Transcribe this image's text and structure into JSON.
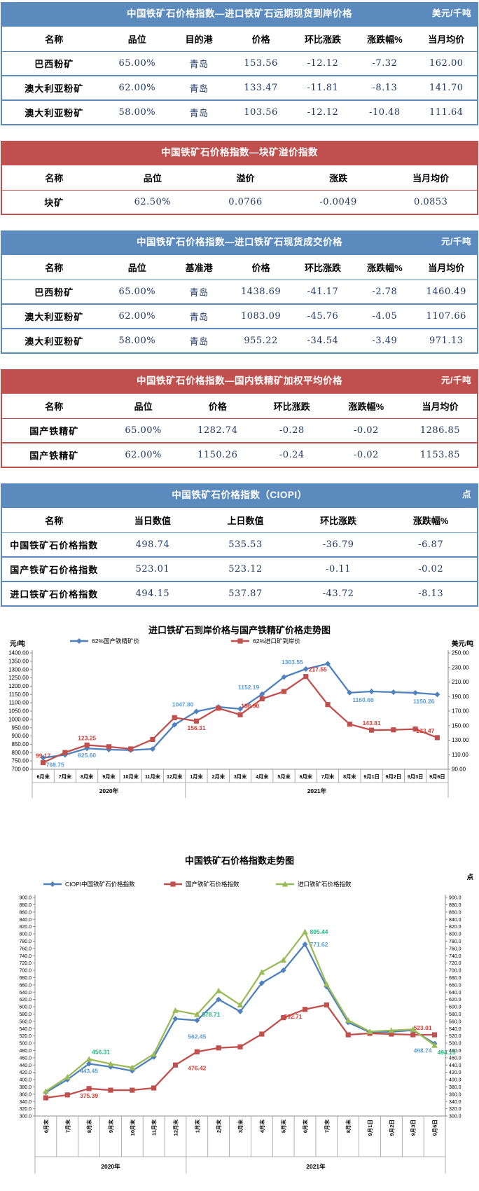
{
  "tables": [
    {
      "id": "import-forward-price",
      "accent": "blue",
      "title": "中国铁矿石价格指数—进口铁矿石远期现货到岸价格",
      "unit": "美元/千吨",
      "columns": [
        "名称",
        "品位",
        "目的港",
        "价格",
        "环比涨跌",
        "涨跌幅%",
        "当月均价"
      ],
      "rows": [
        [
          "巴西粉矿",
          "65.00%",
          "青岛",
          "153.56",
          "-12.12",
          "-7.32",
          "162.00"
        ],
        [
          "澳大利亚粉矿",
          "62.00%",
          "青岛",
          "133.47",
          "-11.81",
          "-8.13",
          "141.70"
        ],
        [
          "澳大利亚粉矿",
          "58.00%",
          "青岛",
          "103.56",
          "-12.12",
          "-10.48",
          "111.64"
        ]
      ]
    },
    {
      "id": "lump-premium-index",
      "accent": "red",
      "title": "中国铁矿石价格指数—块矿溢价指数",
      "unit": "",
      "columns": [
        "名称",
        "品位",
        "溢价",
        "涨跌",
        "当月均价"
      ],
      "rows": [
        [
          "块矿",
          "62.50%",
          "0.0766",
          "-0.0049",
          "0.0853"
        ]
      ]
    },
    {
      "id": "import-spot-deal-price",
      "accent": "blue",
      "title": "中国铁矿石价格指数—进口铁矿石现货成交价格",
      "unit": "元/千吨",
      "columns": [
        "名称",
        "品位",
        "基准港",
        "价格",
        "环比涨跌",
        "涨跌幅%",
        "当月均价"
      ],
      "rows": [
        [
          "巴西粉矿",
          "65.00%",
          "青岛",
          "1438.69",
          "-41.17",
          "-2.78",
          "1460.49"
        ],
        [
          "澳大利亚粉矿",
          "62.00%",
          "青岛",
          "1083.09",
          "-45.76",
          "-4.05",
          "1107.66"
        ],
        [
          "澳大利亚粉矿",
          "58.00%",
          "青岛",
          "955.22",
          "-34.54",
          "-3.49",
          "971.13"
        ]
      ]
    },
    {
      "id": "domestic-concentrate-price",
      "accent": "red",
      "title": "中国铁矿石价格指数—国内铁精矿加权平均价格",
      "unit": "元/千吨",
      "columns": [
        "名称",
        "品位",
        "价格",
        "环比涨跌",
        "涨跌幅%",
        "当月均价"
      ],
      "rows": [
        [
          "国产铁精矿",
          "65.00%",
          "1282.74",
          "-0.28",
          "-0.02",
          "1286.85"
        ],
        [
          "国产铁精矿",
          "62.00%",
          "1150.26",
          "-0.24",
          "-0.02",
          "1153.85"
        ]
      ]
    },
    {
      "id": "ciopi-index",
      "accent": "blue",
      "title": "中国铁矿石价格指数（CIOPI）",
      "unit": "点",
      "columns": [
        "名称",
        "当日数值",
        "上日数值",
        "环比涨跌",
        "涨跌幅%"
      ],
      "rows": [
        [
          "中国铁矿石价格指数",
          "498.74",
          "535.53",
          "-36.79",
          "-6.87"
        ],
        [
          "国产铁矿石价格指数",
          "523.01",
          "523.12",
          "-0.11",
          "-0.02"
        ],
        [
          "进口铁矿石价格指数",
          "494.15",
          "537.87",
          "-43.72",
          "-8.13"
        ]
      ]
    }
  ],
  "chart_data": [
    {
      "type": "line",
      "title": "进口铁矿石到岸价格与国产铁精矿价格走势图",
      "unit_left": "元/吨",
      "unit_right": "美元/吨",
      "x_label_style": "horizontal",
      "categories": [
        "6月末",
        "7月末",
        "8月末",
        "9月末",
        "10月末",
        "11月末",
        "12月末",
        "1月末",
        "2月末",
        "3月末",
        "4月末",
        "5月末",
        "6月末",
        "7月末",
        "8月末",
        "9月1日",
        "9月2日",
        "9月3日",
        "9月6日"
      ],
      "year_groups": [
        {
          "label": "2020年",
          "count": 7
        },
        {
          "label": "2021年",
          "count": 12
        }
      ],
      "y_left": {
        "min": 700,
        "max": 1400,
        "step": 50,
        "decimals": 2
      },
      "y_right": {
        "min": 90,
        "max": 250,
        "step": 20,
        "decimals": 2
      },
      "legend_position": "top",
      "grid": false,
      "series": [
        {
          "name": "62%国产铁精矿价",
          "color": "#4f81bd",
          "label_color": "#5b9bd5",
          "marker": "diamond",
          "axis": "left",
          "values": [
            768.75,
            787,
            825.6,
            818,
            815,
            822,
            968,
            1047.8,
            1075,
            1063,
            1152.19,
            1255,
            1303.55,
            1335,
            1160.66,
            1168,
            1164,
            1160,
            1150.26
          ],
          "point_labels": [
            {
              "i": 0,
              "text": "768.75",
              "pos": "br"
            },
            {
              "i": 2,
              "text": "825.60",
              "pos": "b"
            },
            {
              "i": 7,
              "text": "1047.80",
              "pos": "al"
            },
            {
              "i": 10,
              "text": "1152.19",
              "pos": "al"
            },
            {
              "i": 12,
              "text": "1303.55",
              "pos": "al"
            },
            {
              "i": 14,
              "text": "1160.66",
              "pos": "br"
            },
            {
              "i": 18,
              "text": "1150.26",
              "pos": "bl"
            }
          ]
        },
        {
          "name": "62%进口矿到岸价",
          "color": "#c0504d",
          "label_color": "#d93a32",
          "marker": "square",
          "axis": "right",
          "values": [
            99.17,
            113,
            123.25,
            121,
            118,
            131,
            161,
            156.31,
            174,
            165,
            186.9,
            197,
            217.55,
            179,
            152,
            143.81,
            144.2,
            145.3,
            133.47
          ],
          "point_labels": [
            {
              "i": 0,
              "text": "99.17",
              "pos": "a"
            },
            {
              "i": 2,
              "text": "123.25",
              "pos": "a"
            },
            {
              "i": 7,
              "text": "156.31",
              "pos": "b"
            },
            {
              "i": 10,
              "text": "186.90",
              "pos": "bl"
            },
            {
              "i": 12,
              "text": "217.55",
              "pos": "ar"
            },
            {
              "i": 15,
              "text": "143.81",
              "pos": "a"
            },
            {
              "i": 18,
              "text": "133.47",
              "pos": "al"
            }
          ]
        }
      ]
    },
    {
      "type": "line",
      "title": "中国铁矿石价格指数走势图",
      "unit_left": "",
      "unit_right": "点",
      "x_label_style": "vertical",
      "categories": [
        "6月末",
        "7月末",
        "8月末",
        "9月末",
        "10月末",
        "11月末",
        "12月末",
        "1月末",
        "2月末",
        "3月末",
        "4月末",
        "5月末",
        "6月末",
        "7月末",
        "8月末",
        "9月1日",
        "9月2日",
        "9月3日",
        "9月6日"
      ],
      "year_groups": [
        {
          "label": "2020年",
          "count": 7
        },
        {
          "label": "2021年",
          "count": 12
        }
      ],
      "y_left": {
        "min": 300,
        "max": 900,
        "step": 20,
        "decimals": 1
      },
      "y_right": {
        "min": 300,
        "max": 900,
        "step": 20,
        "decimals": 1
      },
      "legend_position": "top",
      "grid": false,
      "series": [
        {
          "name": "CIOPI中国铁矿石价格指数",
          "color": "#4f81bd",
          "label_color": "#5b9bd5",
          "marker": "diamond",
          "axis": "left",
          "values": [
            365,
            400,
            443.45,
            435,
            424,
            462,
            567,
            562.45,
            620,
            587,
            665,
            700,
            771.62,
            655,
            557,
            530,
            531,
            535.53,
            498.74
          ],
          "point_labels": [
            {
              "i": 2,
              "text": "443.45",
              "pos": "b"
            },
            {
              "i": 7,
              "text": "562.45",
              "pos": "bb"
            },
            {
              "i": 12,
              "text": "771.62",
              "pos": "r"
            },
            {
              "i": 18,
              "text": "498.74",
              "pos": "bl"
            }
          ]
        },
        {
          "name": "国产铁矿石价格指数",
          "color": "#c0504d",
          "label_color": "#d93a32",
          "marker": "square",
          "axis": "left",
          "values": [
            350,
            358,
            375.39,
            371,
            371,
            377,
            440,
            476.42,
            487,
            490,
            525,
            570,
            592.71,
            605,
            523,
            527,
            525,
            523.12,
            523.01
          ],
          "point_labels": [
            {
              "i": 2,
              "text": "375.39",
              "pos": "b"
            },
            {
              "i": 7,
              "text": "476.42",
              "pos": "bb"
            },
            {
              "i": 12,
              "text": "592.71",
              "pos": "bl"
            },
            {
              "i": 18,
              "text": "523.01",
              "pos": "al"
            }
          ]
        },
        {
          "name": "进口铁矿石价格指数",
          "color": "#9bbb59",
          "label_color": "#1fb77f",
          "marker": "triangle",
          "axis": "left",
          "values": [
            368,
            407,
            456.31,
            443,
            433,
            470,
            590,
            578.71,
            644,
            605,
            695,
            728,
            805.44,
            662,
            563,
            532,
            535,
            537.87,
            494.15
          ],
          "point_labels": [
            {
              "i": 2,
              "text": "456.31",
              "pos": "ar"
            },
            {
              "i": 7,
              "text": "578.71",
              "pos": "r"
            },
            {
              "i": 12,
              "text": "805.44",
              "pos": "r"
            },
            {
              "i": 18,
              "text": "494.15",
              "pos": "br"
            }
          ]
        }
      ]
    }
  ],
  "colors": {
    "table_blue_accent": "#5b8abe",
    "table_red_accent": "#c0504d",
    "table_number_text": "#1f3864",
    "axis_line": "#8c8c8c",
    "x_cell_line": "#9a9a9a"
  }
}
